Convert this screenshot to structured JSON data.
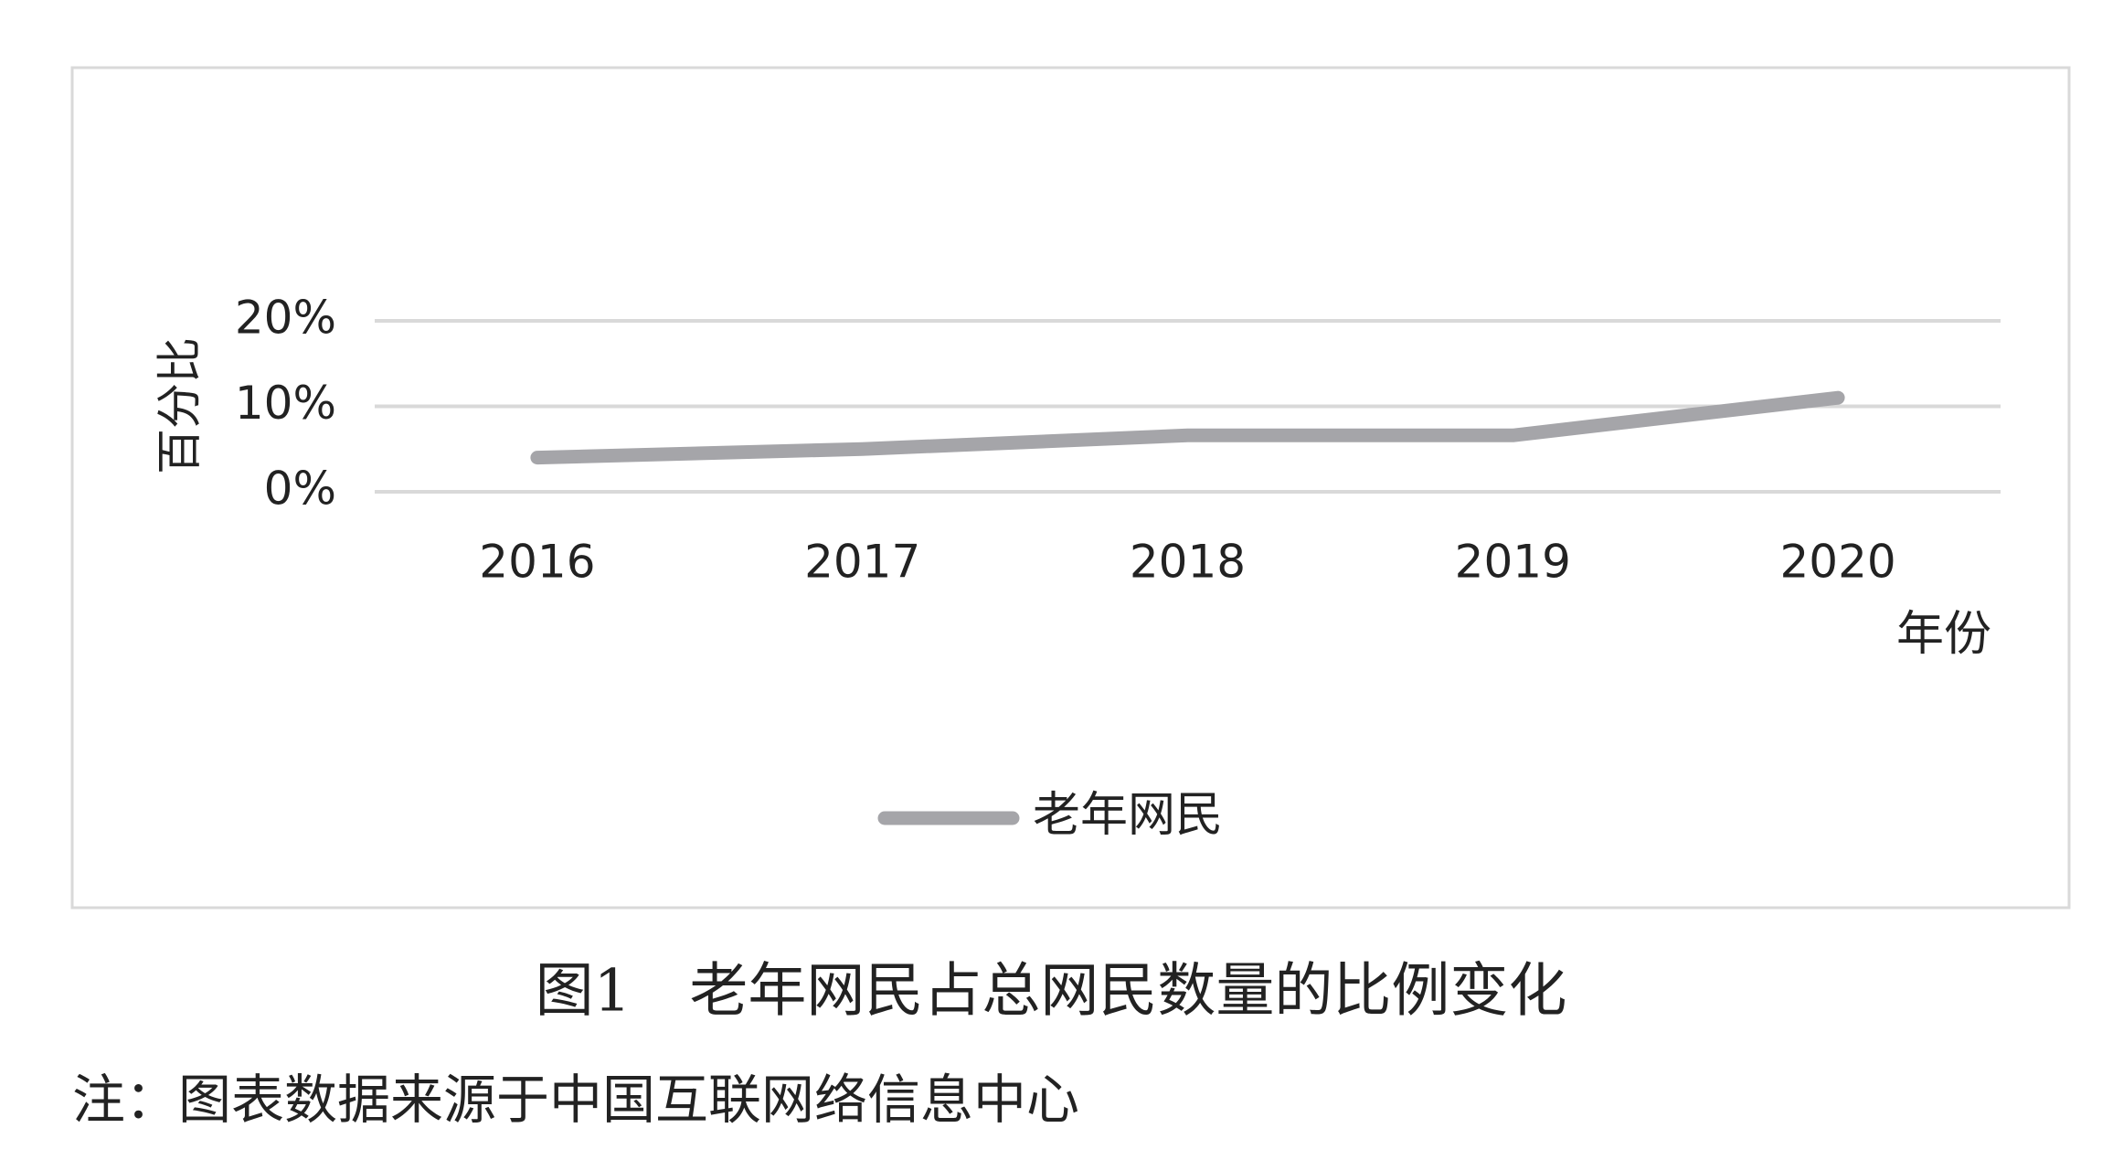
{
  "chart_data": {
    "type": "line",
    "title": "图1　老年网民占总网民数量的比例变化",
    "note": "注：图表数据来源于中国互联网络信息中心",
    "y_label": "百分比",
    "x_label": "年份",
    "categories": [
      "2016",
      "2017",
      "2018",
      "2019",
      "2020"
    ],
    "series": [
      {
        "name": "老年网民",
        "color": "#a5a5a9",
        "values": [
          4.0,
          5.0,
          6.6,
          6.6,
          11.0
        ]
      }
    ],
    "ylim": [
      0,
      20
    ],
    "yticks": [
      {
        "value": 0,
        "label": "0%"
      },
      {
        "value": 10,
        "label": "10%"
      },
      {
        "value": 20,
        "label": "20%"
      }
    ],
    "grid": true
  }
}
